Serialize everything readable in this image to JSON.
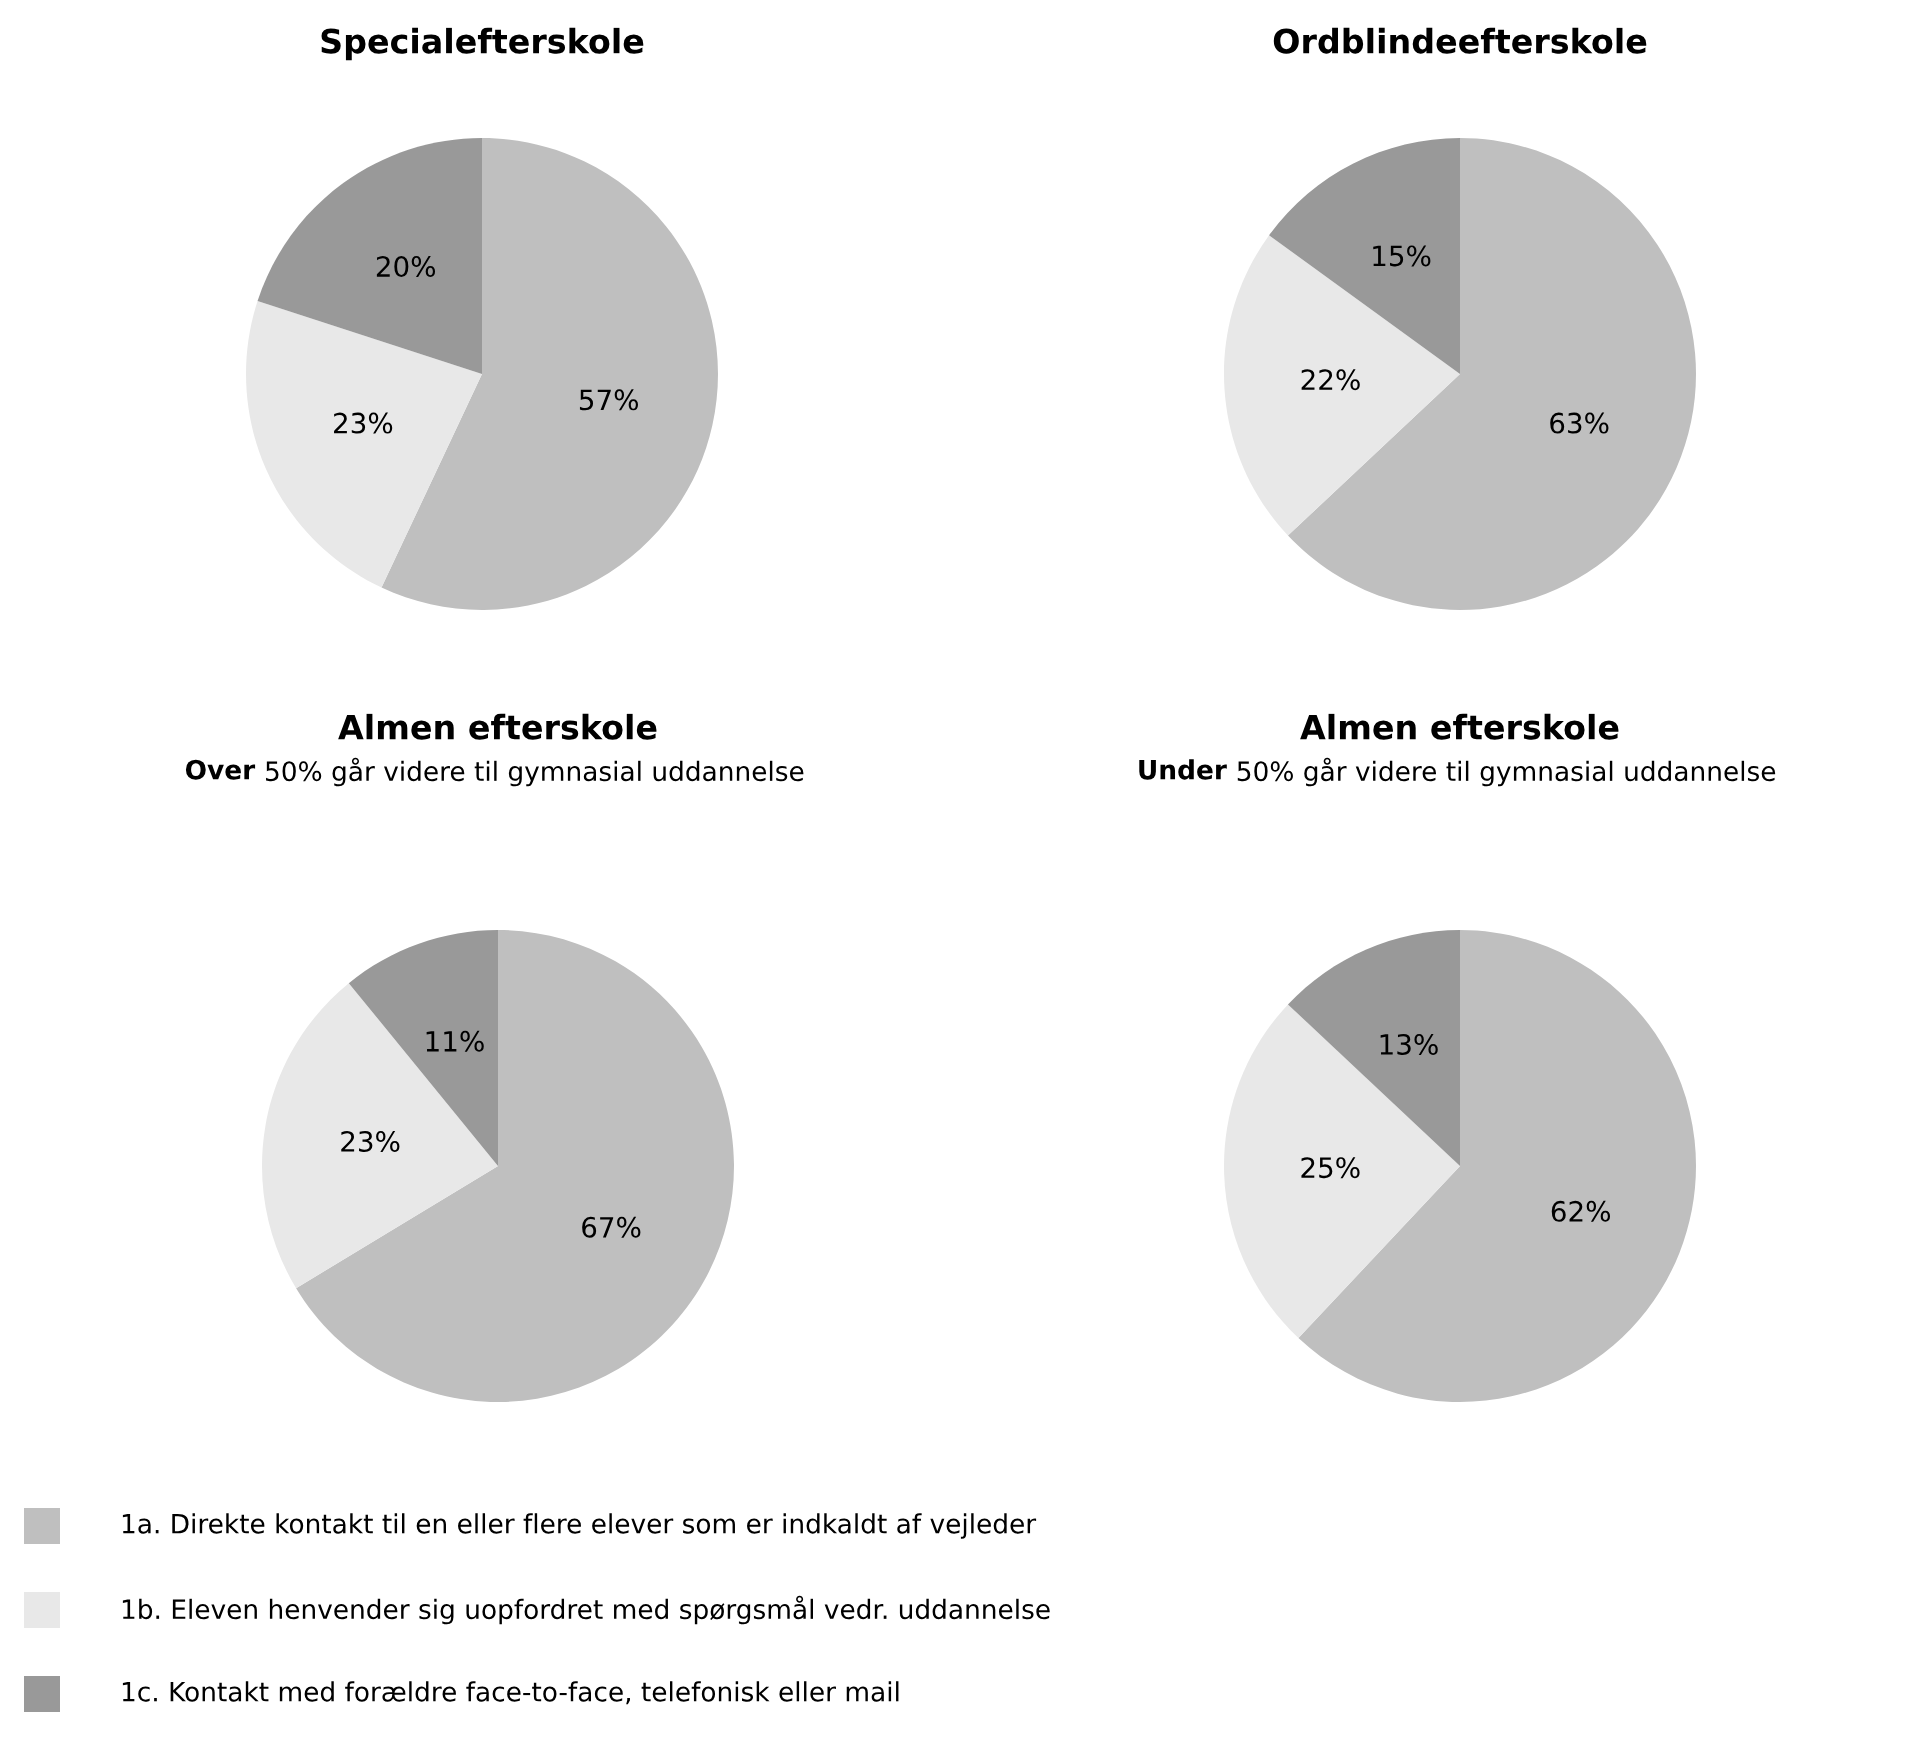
{
  "chart_data": [
    {
      "type": "pie",
      "title": "Specialefterskole",
      "categories": [
        "1a. Direkte kontakt til en eller flere elever som er indkaldt af vejleder",
        "1b. Eleven henvender sig uopfordret med spørgsmål vedr. uddannelse",
        "1c. Kontakt med forældre face-to-face, telefonisk eller mail"
      ],
      "values": [
        57,
        23,
        20
      ],
      "colors": [
        "#bfbfbf",
        "#e8e8e8",
        "#999999"
      ],
      "value_labels": [
        "57%",
        "23%",
        "20%"
      ],
      "legend": "bottom"
    },
    {
      "type": "pie",
      "title": "Ordblindeefterskole",
      "values": [
        63,
        22,
        15
      ],
      "colors": [
        "#bfbfbf",
        "#e8e8e8",
        "#999999"
      ],
      "value_labels": [
        "63%",
        "22%",
        "15%"
      ]
    },
    {
      "type": "pie",
      "title": "Almen efterskole",
      "subtitle": "Over 50% går videre til gymnasial uddannelse",
      "values": [
        67,
        23,
        11
      ],
      "colors": [
        "#bfbfbf",
        "#e8e8e8",
        "#999999"
      ],
      "value_labels": [
        "67%",
        "23%",
        "11%"
      ]
    },
    {
      "type": "pie",
      "title": "Almen efterskole",
      "subtitle": "Under 50% går videre til gymnasial uddannelse",
      "values": [
        62,
        25,
        13
      ],
      "colors": [
        "#bfbfbf",
        "#e8e8e8",
        "#999999"
      ],
      "value_labels": [
        "62%",
        "25%",
        "13%"
      ]
    }
  ]
}
